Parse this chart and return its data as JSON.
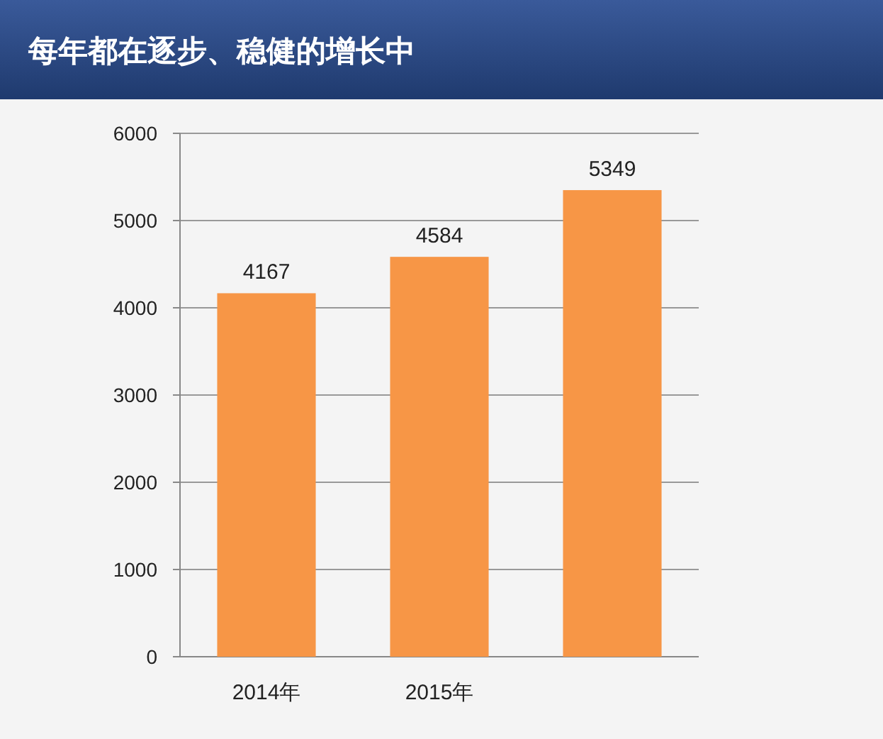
{
  "chart_data": {
    "type": "bar",
    "title": "每年都在逐步、稳健的增长中",
    "categories": [
      "2014年",
      "2015年",
      null
    ],
    "values": [
      4167,
      4584,
      5349
    ],
    "color": "#f79646",
    "ylim": [
      0,
      6000
    ],
    "yticks": [
      0,
      1000,
      2000,
      3000,
      4000,
      5000,
      6000
    ],
    "grid": "y",
    "data_labels": true
  }
}
